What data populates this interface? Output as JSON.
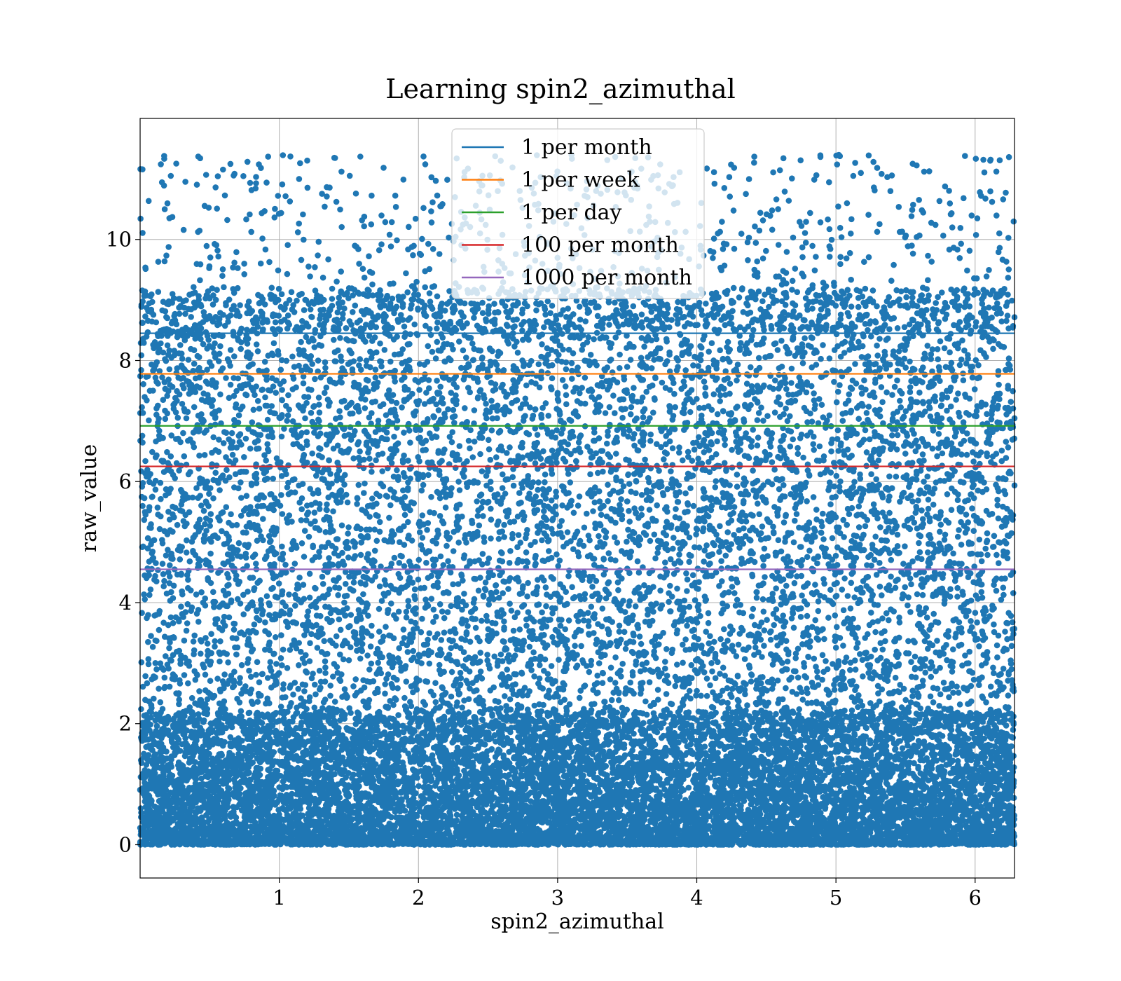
{
  "chart_data": {
    "type": "scatter",
    "title": "Learning spin2_azimuthal",
    "xlabel": "spin2_azimuthal",
    "ylabel": "raw_value",
    "xlim": [
      0.0,
      6.283
    ],
    "ylim": [
      -0.55,
      12.0
    ],
    "x_ticks": [
      1,
      2,
      3,
      4,
      5,
      6
    ],
    "y_ticks": [
      0,
      2,
      4,
      6,
      8,
      10
    ],
    "x_tick_labels": [
      "1",
      "2",
      "3",
      "4",
      "5",
      "6"
    ],
    "y_tick_labels": [
      "0",
      "2",
      "4",
      "6",
      "8",
      "10"
    ],
    "grid": true,
    "legend_position": "upper-center",
    "scatter": {
      "color": "#1f77b4",
      "x_range": [
        0.0,
        6.283
      ],
      "y_range": [
        0.0,
        11.4
      ],
      "approx_point_count": 20000,
      "density_note": "densest near 0-2, thinning above 8"
    },
    "series": [
      {
        "name": "1 per month",
        "type": "hline",
        "y": 8.45,
        "color": "#1f77b4"
      },
      {
        "name": "1 per week",
        "type": "hline",
        "y": 7.78,
        "color": "#ff7f0e"
      },
      {
        "name": "1 per day",
        "type": "hline",
        "y": 6.92,
        "color": "#2ca02c"
      },
      {
        "name": "100 per month",
        "type": "hline",
        "y": 6.25,
        "color": "#d62728"
      },
      {
        "name": "1000 per month",
        "type": "hline",
        "y": 4.55,
        "color": "#9467bd"
      }
    ]
  }
}
